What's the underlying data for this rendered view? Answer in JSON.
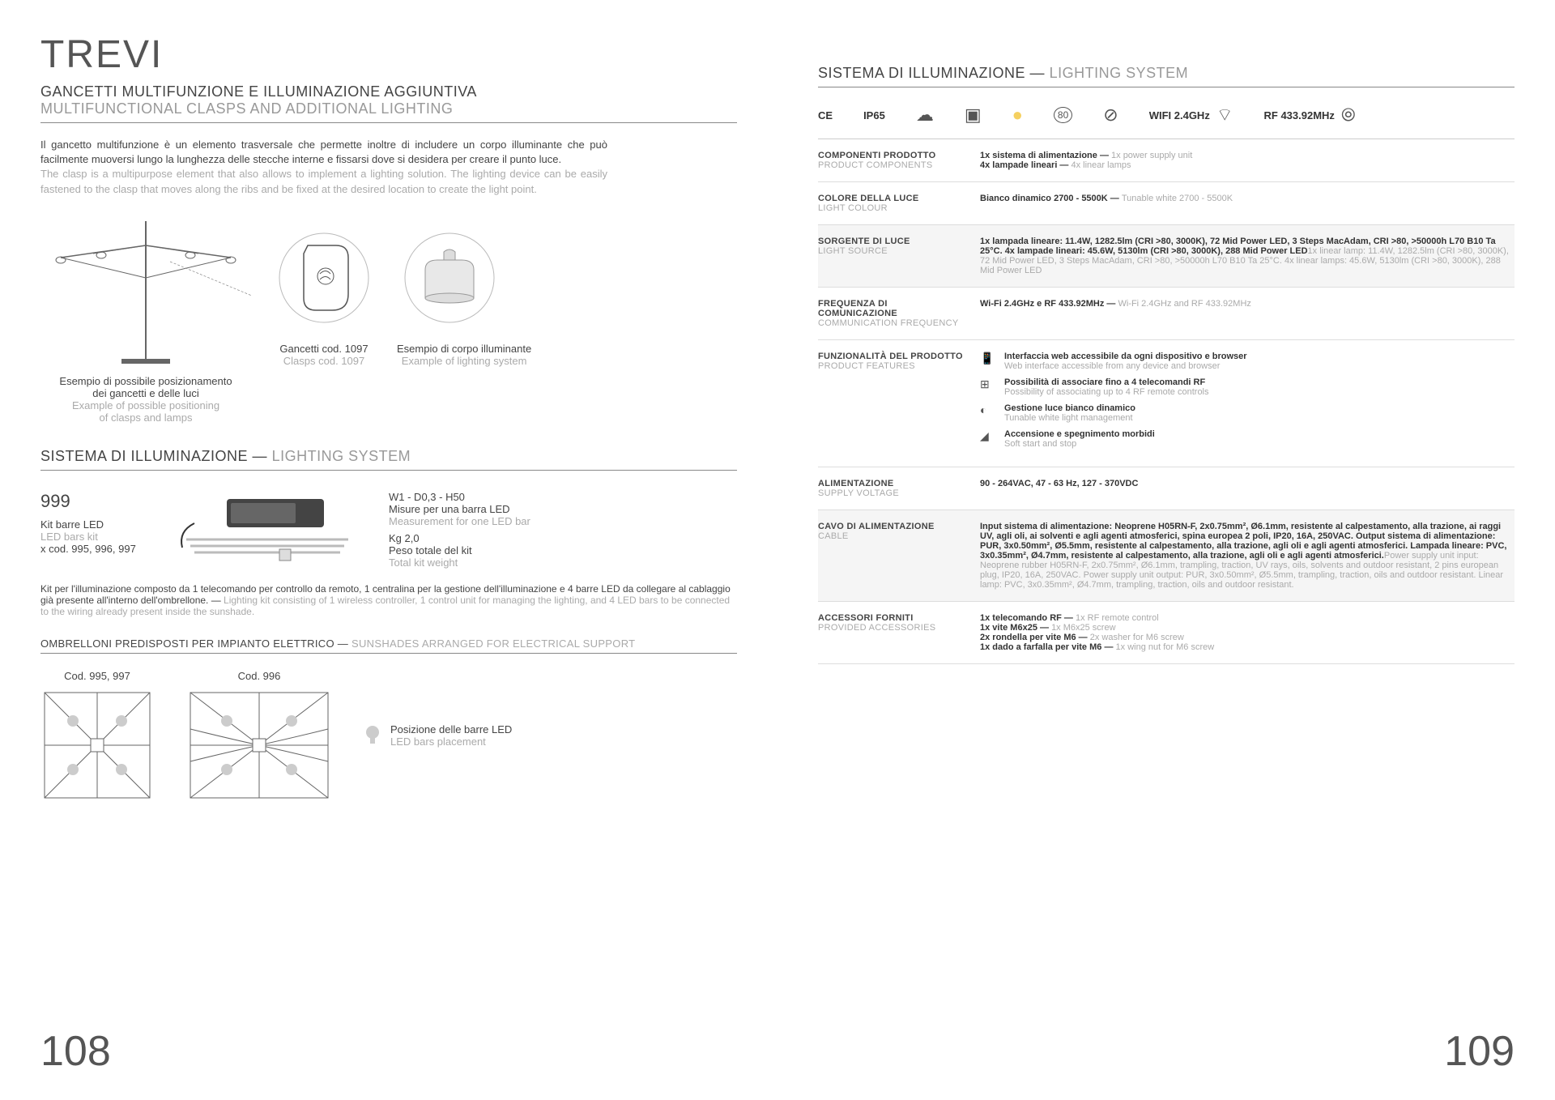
{
  "left": {
    "title": "TREVI",
    "subtitle_it": "GANCETTI MULTIFUNZIONE E ILLUMINAZIONE AGGIUNTIVA",
    "subtitle_en": "MULTIFUNCTIONAL CLASPS AND ADDITIONAL LIGHTING",
    "para_it": "Il gancetto multifunzione è un elemento trasversale che permette inoltre di includere un corpo illuminante che può facilmente muoversi lungo la lunghezza delle stecche interne e fissarsi dove si desidera per creare il punto luce.",
    "para_en": "The clasp is a multipurpose element that also allows to implement a lighting solution. The lighting device can be easily fastened to the clasp that moves along the ribs and be fixed at the desired location to create the light point.",
    "umbrella_caption_it1": "Esempio di possibile posizionamento",
    "umbrella_caption_it2": "dei gancetti e delle luci",
    "umbrella_caption_en1": "Example of possible positioning",
    "umbrella_caption_en2": "of clasps and lamps",
    "clasp_caption_it": "Gancetti cod. 1097",
    "clasp_caption_en": "Clasps cod. 1097",
    "lamp_caption_it": "Esempio di corpo illuminante",
    "lamp_caption_en": "Example of lighting system",
    "section2_it": "SISTEMA DI ILLUMINAZIONE",
    "section2_en": "LIGHTING SYSTEM",
    "kit_code": "999",
    "kit_name_it": "Kit barre LED",
    "kit_name_en": "LED bars kit",
    "kit_x": "x cod. 995, 996, 997",
    "kit_meas_label": "W1 - D0,3 - H50",
    "kit_meas_it": "Misure per una barra LED",
    "kit_meas_en": "Measurement for one LED bar",
    "kit_weight_label": "Kg 2,0",
    "kit_weight_it": "Peso totale del kit",
    "kit_weight_en": "Total kit weight",
    "kit_desc_it": "Kit per l'illuminazione composto da 1 telecomando per controllo da remoto, 1 centralina per la gestione dell'illuminazione e 4 barre LED da collegare al cablaggio già presente all'interno dell'ombrellone.",
    "kit_desc_en": "Lighting kit consisting of 1 wireless controller, 1 control unit for managing the lighting, and 4 LED bars to be connected to the wiring already present inside the sunshade.",
    "sunshade_heading_it": "OMBRELLONI PREDISPOSTI PER IMPIANTO ELETTRICO",
    "sunshade_heading_en": "SUNSHADES ARRANGED FOR ELECTRICAL SUPPORT",
    "sunshade1_label": "Cod. 995, 997",
    "sunshade2_label": "Cod. 996",
    "ledpos_it": "Posizione delle barre LED",
    "ledpos_en": "LED bars placement",
    "page_num": "108"
  },
  "right": {
    "heading_it": "SISTEMA DI ILLUMINAZIONE",
    "heading_en": "LIGHTING SYSTEM",
    "icons": {
      "ce": "CE",
      "ip": "IP65",
      "wifi": "WIFI 2.4GHz",
      "rf": "RF 433.92MHz",
      "p80": "80"
    },
    "rows": [
      {
        "shaded": false,
        "label_it": "COMPONENTI PRODOTTO",
        "label_en": "PRODUCT COMPONENTS",
        "value_it": "1x sistema di alimentazione — ",
        "value_en": "1x power supply unit",
        "value_it2": "4x lampade lineari — ",
        "value_en2": "4x linear lamps"
      },
      {
        "shaded": false,
        "label_it": "COLORE DELLA LUCE",
        "label_en": "LIGHT COLOUR",
        "value_it": "Bianco dinamico 2700 - 5500K — ",
        "value_en": "Tunable white 2700 - 5500K"
      },
      {
        "shaded": true,
        "label_it": "SORGENTE DI LUCE",
        "label_en": "LIGHT SOURCE",
        "value_it": "1x lampada lineare: 11.4W, 1282.5lm (CRI >80, 3000K), 72 Mid Power LED, 3 Steps MacAdam, CRI >80, >50000h L70 B10 Ta 25°C. 4x lampade lineari: 45.6W, 5130lm (CRI >80, 3000K), 288 Mid Power LED",
        "value_en": "1x linear lamp: 11.4W, 1282.5lm (CRI >80, 3000K), 72 Mid Power LED, 3 Steps MacAdam, CRI >80, >50000h L70 B10 Ta 25°C. 4x linear lamps: 45.6W, 5130lm (CRI >80, 3000K), 288 Mid Power LED"
      },
      {
        "shaded": false,
        "label_it": "FREQUENZA DI COMUNICAZIONE",
        "label_en": "COMMUNICATION FREQUENCY",
        "value_it": "Wi-Fi 2.4GHz e RF 433.92MHz — ",
        "value_en": "Wi-Fi 2.4GHz and RF 433.92MHz"
      },
      {
        "shaded": false,
        "label_it": "ALIMENTAZIONE",
        "label_en": "SUPPLY VOLTAGE",
        "value_it": "90 - 264VAC, 47 - 63 Hz, 127 - 370VDC",
        "value_en": ""
      },
      {
        "shaded": true,
        "label_it": "CAVO DI ALIMENTAZIONE",
        "label_en": "CABLE",
        "value_it": "Input sistema di alimentazione: Neoprene H05RN-F, 2x0.75mm², Ø6.1mm, resistente al calpestamento, alla trazione, ai raggi UV, agli oli, ai solventi e agli agenti atmosferici, spina europea 2 poli, IP20, 16A, 250VAC. Output sistema di alimentazione: PUR, 3x0.50mm², Ø5.5mm, resistente al calpestamento, alla trazione, agli oli e agli agenti atmosferici. Lampada lineare: PVC, 3x0.35mm², Ø4.7mm, resistente al calpestamento, alla trazione, agli oli e agli agenti atmosferici.",
        "value_en": "Power supply unit input: Neoprene rubber H05RN-F, 2x0.75mm², Ø6.1mm, trampling, traction, UV rays, oils, solvents and outdoor resistant, 2 pins european plug, IP20, 16A, 250VAC. Power supply unit output: PUR, 3x0.50mm², Ø5.5mm, trampling, traction, oils and outdoor resistant. Linear lamp: PVC, 3x0.35mm², Ø4.7mm, trampling, traction, oils and outdoor resistant."
      },
      {
        "shaded": false,
        "label_it": "ACCESSORI FORNITI",
        "label_en": "PROVIDED ACCESSORIES",
        "value_it": "1x telecomando RF — ",
        "value_en": "1x RF remote control",
        "value_it2": "1x vite M6x25 — ",
        "value_en2": "1x M6x25 screw",
        "value_it3": "2x rondella per vite M6 — ",
        "value_en3": "2x washer for M6 screw",
        "value_it4": "1x dado a farfalla per vite M6 — ",
        "value_en4": "1x wing nut for M6 screw"
      }
    ],
    "features_label_it": "FUNZIONALITÀ DEL PRODOTTO",
    "features_label_en": "PRODUCT FEATURES",
    "features": [
      {
        "icon": "📱",
        "it": "Interfaccia web accessibile da ogni dispositivo e browser",
        "en": "Web interface accessible from any device and browser"
      },
      {
        "icon": "⊞",
        "it": "Possibilità di associare fino a 4 telecomandi RF",
        "en": "Possibility of associating up to 4 RF remote controls"
      },
      {
        "icon": "◐",
        "it": "Gestione luce bianco dinamico",
        "en": "Tunable white light management"
      },
      {
        "icon": "◢",
        "it": "Accensione e spegnimento morbidi",
        "en": "Soft start and stop"
      }
    ],
    "page_num": "109"
  }
}
